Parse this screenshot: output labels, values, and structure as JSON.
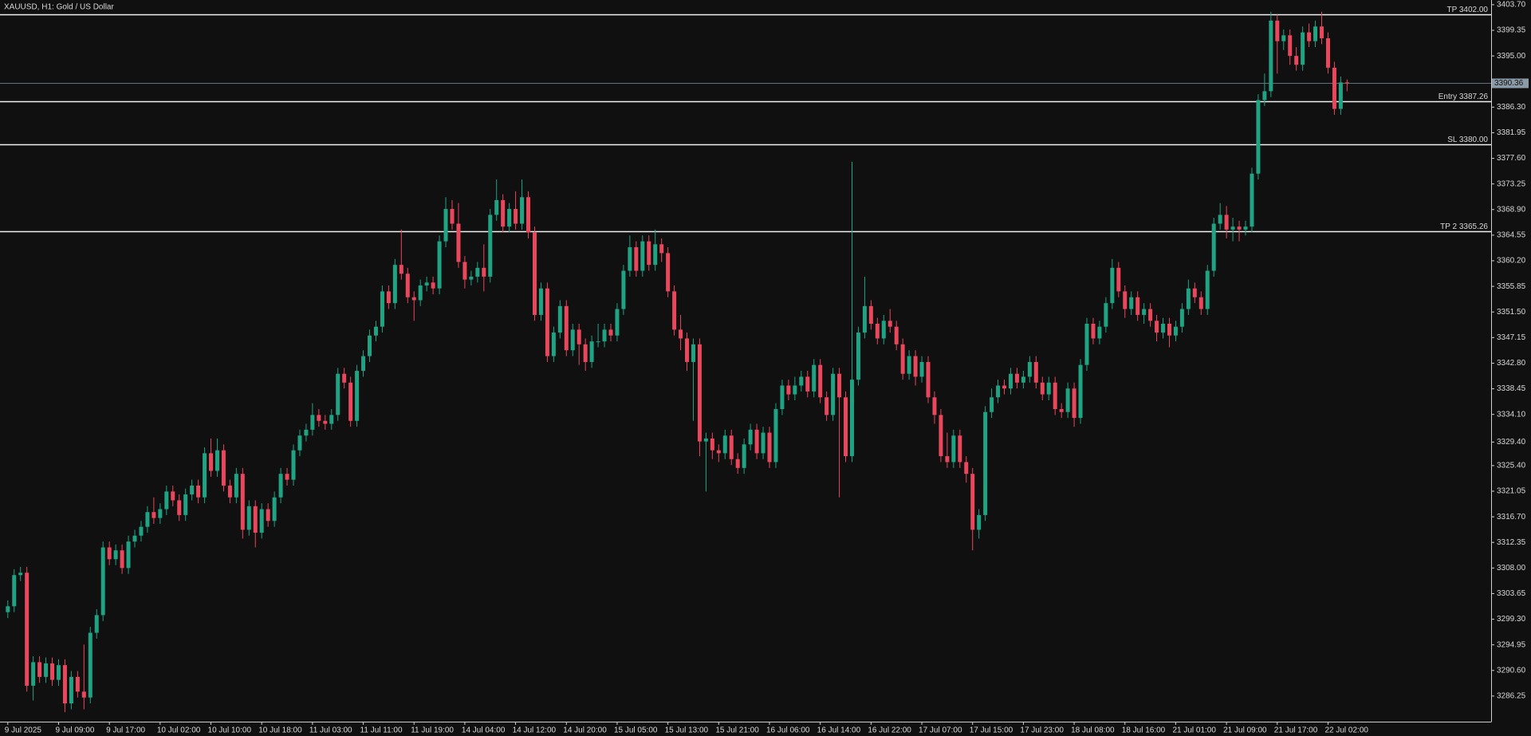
{
  "chart_data": {
    "type": "candlestick",
    "title": "XAUUSD, H1:  Gold / US Dollar",
    "up_color": "#1fa383",
    "down_color": "#e8475c",
    "level_color": "#f2f2f2",
    "bid_color": "#8a9aa6",
    "ylim": [
      3281.9,
      3404.5
    ],
    "yticks": [
      {
        "value": 3403.7,
        "label": "3403.70"
      },
      3399.35,
      {
        "value": 3395,
        "label": "3395.00"
      },
      {
        "value": 3386.3,
        "label": "3386.30"
      },
      3381.95,
      {
        "value": 3377.6,
        "label": "3377.60"
      },
      3373.25,
      {
        "value": 3368.9,
        "label": "3368.90"
      },
      3364.55,
      {
        "value": 3360.2,
        "label": "3360.20"
      },
      3355.85,
      {
        "value": 3351.5,
        "label": "3351.50"
      },
      3347.15,
      {
        "value": 3342.8,
        "label": "3342.80"
      },
      3338.45,
      {
        "value": 3334.1,
        "label": "3334.10"
      },
      {
        "value": 3329.4,
        "label": "3329.40"
      },
      {
        "value": 3325.4,
        "label": "3325.40"
      },
      3321.05,
      {
        "value": 3316.7,
        "label": "3316.70"
      },
      3312.35,
      {
        "value": 3308,
        "label": "3308.00"
      },
      3303.65,
      {
        "value": 3299.3,
        "label": "3299.30"
      },
      3294.95,
      {
        "value": 3290.6,
        "label": "3290.60"
      },
      3286.25
    ],
    "levels": [
      {
        "label": "TP 3402.00",
        "value": 3402
      },
      {
        "label": "Entry 3387.26",
        "value": 3387.26
      },
      {
        "label": "SL 3380.00",
        "value": 3380
      },
      {
        "label": "TP 2 3365.26",
        "value": 3365.26
      }
    ],
    "bid": 3390.36,
    "categories": [
      "9 Jul 2025",
      null,
      null,
      null,
      null,
      null,
      null,
      null,
      "9 Jul 09:00",
      null,
      null,
      null,
      null,
      null,
      null,
      null,
      "9 Jul 17:00",
      null,
      null,
      null,
      null,
      null,
      null,
      null,
      "10 Jul 02:00",
      null,
      null,
      null,
      null,
      null,
      null,
      null,
      "10 Jul 10:00",
      null,
      null,
      null,
      null,
      null,
      null,
      null,
      "10 Jul 18:00",
      null,
      null,
      null,
      null,
      null,
      null,
      null,
      "11 Jul 03:00",
      null,
      null,
      null,
      null,
      null,
      null,
      null,
      "11 Jul 11:00",
      null,
      null,
      null,
      null,
      null,
      null,
      null,
      "11 Jul 19:00",
      null,
      null,
      null,
      null,
      null,
      null,
      null,
      "14 Jul 04:00",
      null,
      null,
      null,
      null,
      null,
      null,
      null,
      "14 Jul 12:00",
      null,
      null,
      null,
      null,
      null,
      null,
      null,
      "14 Jul 20:00",
      null,
      null,
      null,
      null,
      null,
      null,
      null,
      "15 Jul 05:00",
      null,
      null,
      null,
      null,
      null,
      null,
      null,
      "15 Jul 13:00",
      null,
      null,
      null,
      null,
      null,
      null,
      null,
      "15 Jul 21:00",
      null,
      null,
      null,
      null,
      null,
      null,
      null,
      "16 Jul 06:00",
      null,
      null,
      null,
      null,
      null,
      null,
      null,
      "16 Jul 14:00",
      null,
      null,
      null,
      null,
      null,
      null,
      null,
      "16 Jul 22:00",
      null,
      null,
      null,
      null,
      null,
      null,
      null,
      "17 Jul 07:00",
      null,
      null,
      null,
      null,
      null,
      null,
      null,
      "17 Jul 15:00",
      null,
      null,
      null,
      null,
      null,
      null,
      null,
      "17 Jul 23:00",
      null,
      null,
      null,
      null,
      null,
      null,
      null,
      "18 Jul 08:00",
      null,
      null,
      null,
      null,
      null,
      null,
      null,
      "18 Jul 16:00",
      null,
      null,
      null,
      null,
      null,
      null,
      null,
      "21 Jul 01:00",
      null,
      null,
      null,
      null,
      null,
      null,
      null,
      "21 Jul 09:00",
      null,
      null,
      null,
      null,
      null,
      null,
      null,
      "21 Jul 17:00",
      null,
      null,
      null,
      null,
      null,
      null,
      null,
      "22 Jul 02:00",
      null,
      null,
      null
    ],
    "open": [
      3300.5,
      3301.5,
      3306.8,
      3307.2,
      3288.0,
      3292.0,
      3289.5,
      3291.8,
      3289.0,
      3291.5,
      3285.0,
      3289.5,
      3287.0,
      3286.0,
      3297.0,
      3300.0,
      3311.5,
      3309.5,
      3311.0,
      3308.0,
      3312.5,
      3313.5,
      3315.0,
      3317.5,
      3316.5,
      3318.0,
      3321.0,
      3319.5,
      3317.0,
      3320.5,
      3322.0,
      3320.0,
      3327.5,
      3324.5,
      3328.0,
      3322.0,
      3320.0,
      3324.0,
      3314.5,
      3318.5,
      3314.0,
      3318.0,
      3316.0,
      3320.0,
      3324.0,
      3323.0,
      3328.0,
      3330.5,
      3331.5,
      3334.0,
      3333.0,
      3332.5,
      3334.0,
      3341.0,
      3339.5,
      3333.0,
      3341.5,
      3344.0,
      3347.5,
      3349.0,
      3355.0,
      3353.0,
      3359.5,
      3358.0,
      3354.0,
      3353.5,
      3356.0,
      3356.5,
      3355.5,
      3363.5,
      3369.0,
      3366.5,
      3360.0,
      3357.0,
      3357.5,
      3359.0,
      3357.5,
      3368.0,
      3370.5,
      3366.0,
      3369.0,
      3366.5,
      3371.0,
      3365.0,
      3351.0,
      3355.5,
      3344.0,
      3348.0,
      3352.5,
      3345.0,
      3348.5,
      3346.0,
      3343.0,
      3346.5,
      3346.5,
      3348.5,
      3347.5,
      3352.0,
      3358.5,
      3362.5,
      3358.5,
      3363.5,
      3359.5,
      3363.0,
      3361.5,
      3355.0,
      3348.5,
      3347.0,
      3343.0,
      3346.0,
      3329.5,
      3330.0,
      3328.0,
      3327.5,
      3330.5,
      3326.5,
      3325.0,
      3329.0,
      3331.5,
      3327.5,
      3331.0,
      3326.0,
      3335.0,
      3339.0,
      3337.5,
      3339.0,
      3340.5,
      3338.0,
      3342.5,
      3337.0,
      3334.0,
      3341.0,
      3337.0,
      3327.0,
      3340.0,
      3348.0,
      3352.5,
      3349.5,
      3347.0,
      3350.0,
      3349.0,
      3346.0,
      3341.0,
      3344.0,
      3340.5,
      3343.0,
      3337.0,
      3334.0,
      3327.0,
      3326.0,
      3330.5,
      3326.0,
      3324.0,
      3314.5,
      3317.0,
      3334.5,
      3337.0,
      3339.0,
      3338.5,
      3341.0,
      3339.5,
      3340.5,
      3343.0,
      3339.5,
      3337.5,
      3339.5,
      3335.0,
      3334.5,
      3338.5,
      3333.5,
      3342.5,
      3349.5,
      3347.0,
      3349.0,
      3353.0,
      3359.0,
      3355.0,
      3352.0,
      3354.0,
      3351.0,
      3352.0,
      3350.0,
      3348.0,
      3349.5,
      3347.5,
      3349.0,
      3352.0,
      3355.5,
      3354.0,
      3352.0,
      3358.5,
      3366.5,
      3368.0,
      3365.5,
      3366.0,
      3365.5,
      3366.0,
      3375.0,
      3387.5,
      3389.0,
      3401.0,
      3397.5,
      3398.5,
      3395.0,
      3393.5,
      3399.0,
      3397.5,
      3400.0,
      3398.0,
      3393.0,
      3386.0,
      3390.5
    ],
    "high": [
      3302.5,
      3307.8,
      3308.2,
      3308.2,
      3293.0,
      3293.0,
      3292.8,
      3292.8,
      3292.5,
      3292.5,
      3290.5,
      3290.5,
      3295.0,
      3298.0,
      3301.0,
      3312.5,
      3312.5,
      3312.0,
      3312.0,
      3313.5,
      3314.5,
      3316.0,
      3318.5,
      3320.0,
      3319.0,
      3322.0,
      3322.0,
      3320.5,
      3321.5,
      3323.0,
      3323.0,
      3328.5,
      3330.0,
      3330.0,
      3329.0,
      3323.0,
      3325.0,
      3325.0,
      3319.5,
      3319.5,
      3319.0,
      3319.0,
      3321.0,
      3325.0,
      3325.0,
      3329.0,
      3331.5,
      3332.5,
      3336.0,
      3335.0,
      3334.0,
      3335.0,
      3342.0,
      3342.0,
      3340.5,
      3342.5,
      3345.0,
      3348.5,
      3350.0,
      3356.0,
      3356.0,
      3360.5,
      3365.5,
      3359.0,
      3355.0,
      3357.0,
      3357.5,
      3357.5,
      3364.5,
      3371.0,
      3370.5,
      3370.0,
      3361.0,
      3358.5,
      3360.0,
      3363.0,
      3369.0,
      3374.0,
      3371.5,
      3370.0,
      3372.0,
      3374.0,
      3372.0,
      3366.0,
      3356.5,
      3356.5,
      3349.0,
      3353.5,
      3353.5,
      3349.5,
      3349.5,
      3347.0,
      3347.5,
      3349.5,
      3349.5,
      3349.5,
      3353.0,
      3359.5,
      3364.5,
      3363.5,
      3364.5,
      3364.5,
      3365.5,
      3364.0,
      3362.5,
      3356.0,
      3351.0,
      3348.0,
      3347.0,
      3347.0,
      3331.0,
      3331.0,
      3329.0,
      3331.5,
      3331.5,
      3327.5,
      3330.0,
      3332.5,
      3332.5,
      3332.0,
      3332.0,
      3336.0,
      3340.0,
      3340.0,
      3340.5,
      3341.5,
      3341.5,
      3343.5,
      3343.5,
      3338.0,
      3342.0,
      3342.0,
      3338.0,
      3377.0,
      3349.0,
      3357.5,
      3353.5,
      3350.5,
      3351.0,
      3352.0,
      3350.0,
      3347.0,
      3345.0,
      3345.0,
      3344.0,
      3344.0,
      3338.0,
      3335.0,
      3331.0,
      3331.5,
      3331.5,
      3327.0,
      3325.0,
      3318.0,
      3335.5,
      3338.5,
      3340.0,
      3340.0,
      3342.0,
      3342.0,
      3341.5,
      3344.0,
      3344.0,
      3340.5,
      3340.5,
      3340.5,
      3336.0,
      3339.5,
      3339.5,
      3343.5,
      3350.5,
      3350.5,
      3350.0,
      3354.0,
      3360.5,
      3360.0,
      3356.0,
      3355.0,
      3355.0,
      3353.0,
      3353.0,
      3351.0,
      3350.5,
      3350.5,
      3350.0,
      3353.0,
      3357.0,
      3356.5,
      3355.0,
      3359.5,
      3367.5,
      3370.0,
      3369.5,
      3367.5,
      3367.0,
      3367.0,
      3376.0,
      3388.5,
      3392.0,
      3402.5,
      3402.0,
      3399.5,
      3399.5,
      3396.5,
      3400.0,
      3400.5,
      3401.0,
      3402.5,
      3399.0,
      3394.0,
      3391.5,
      3391.0
    ],
    "low": [
      3299.5,
      3300.5,
      3305.8,
      3287.0,
      3285.5,
      3288.5,
      3288.5,
      3288.0,
      3288.0,
      3283.5,
      3284.0,
      3286.0,
      3284.0,
      3285.0,
      3296.0,
      3299.0,
      3308.5,
      3308.5,
      3307.0,
      3307.0,
      3311.5,
      3312.5,
      3314.0,
      3315.5,
      3315.5,
      3317.0,
      3318.5,
      3316.0,
      3316.0,
      3319.5,
      3319.0,
      3319.0,
      3323.5,
      3323.5,
      3321.0,
      3319.0,
      3319.0,
      3313.0,
      3313.5,
      3311.5,
      3313.0,
      3315.0,
      3315.0,
      3319.0,
      3322.0,
      3322.0,
      3327.0,
      3329.5,
      3330.5,
      3332.0,
      3331.5,
      3331.5,
      3333.0,
      3338.5,
      3332.0,
      3332.0,
      3340.5,
      3343.0,
      3346.5,
      3348.0,
      3352.0,
      3352.0,
      3357.0,
      3353.0,
      3350.0,
      3352.5,
      3355.0,
      3354.5,
      3354.5,
      3362.5,
      3365.5,
      3359.0,
      3355.5,
      3356.0,
      3356.5,
      3355.0,
      3356.5,
      3367.0,
      3365.0,
      3365.0,
      3365.5,
      3365.5,
      3364.0,
      3350.0,
      3350.0,
      3343.0,
      3343.0,
      3347.0,
      3344.0,
      3344.0,
      3342.5,
      3341.5,
      3342.0,
      3345.5,
      3345.5,
      3346.5,
      3346.5,
      3351.0,
      3357.5,
      3357.5,
      3357.5,
      3358.5,
      3358.5,
      3360.0,
      3354.0,
      3347.5,
      3345.0,
      3341.5,
      3333.0,
      3327.0,
      3321.0,
      3326.5,
      3326.0,
      3326.5,
      3325.5,
      3324.0,
      3324.0,
      3328.0,
      3326.5,
      3326.5,
      3325.0,
      3325.0,
      3334.0,
      3336.5,
      3336.5,
      3338.0,
      3337.0,
      3337.0,
      3336.0,
      3333.0,
      3333.0,
      3320.0,
      3326.0,
      3326.0,
      3339.0,
      3347.0,
      3348.5,
      3346.0,
      3346.0,
      3348.0,
      3345.0,
      3340.0,
      3340.0,
      3339.0,
      3339.5,
      3336.0,
      3332.5,
      3326.0,
      3325.0,
      3325.0,
      3325.0,
      3322.5,
      3311.0,
      3313.0,
      3316.0,
      3333.5,
      3336.0,
      3337.5,
      3337.5,
      3338.5,
      3338.5,
      3339.5,
      3338.5,
      3336.5,
      3336.5,
      3334.0,
      3333.5,
      3333.5,
      3332.0,
      3332.5,
      3341.5,
      3346.0,
      3346.0,
      3348.0,
      3352.0,
      3354.0,
      3350.5,
      3351.0,
      3350.0,
      3349.5,
      3349.0,
      3346.5,
      3347.0,
      3345.5,
      3346.5,
      3348.0,
      3351.0,
      3353.0,
      3351.0,
      3351.0,
      3357.5,
      3365.5,
      3364.0,
      3363.5,
      3363.5,
      3364.5,
      3365.0,
      3374.0,
      3386.5,
      3388.0,
      3392.0,
      3396.0,
      3393.5,
      3392.5,
      3392.5,
      3396.5,
      3396.5,
      3397.0,
      3392.0,
      3385.0,
      3385.0,
      3389.0
    ],
    "close": [
      3301.5,
      3306.8,
      3307.2,
      3288.0,
      3292.0,
      3289.5,
      3291.8,
      3289.0,
      3291.5,
      3285.0,
      3289.5,
      3287.0,
      3286.0,
      3297.0,
      3300.0,
      3311.5,
      3309.5,
      3311.0,
      3308.0,
      3312.5,
      3313.5,
      3315.0,
      3317.5,
      3316.5,
      3318.0,
      3321.0,
      3319.5,
      3317.0,
      3320.5,
      3322.0,
      3320.0,
      3327.5,
      3324.5,
      3328.0,
      3322.0,
      3320.0,
      3324.0,
      3314.5,
      3318.5,
      3314.0,
      3318.0,
      3316.0,
      3320.0,
      3324.0,
      3323.0,
      3328.0,
      3330.5,
      3331.5,
      3334.0,
      3333.0,
      3332.5,
      3334.0,
      3341.0,
      3339.5,
      3333.0,
      3341.5,
      3344.0,
      3347.5,
      3349.0,
      3355.0,
      3353.0,
      3359.5,
      3358.0,
      3354.0,
      3353.5,
      3356.0,
      3356.5,
      3355.5,
      3363.5,
      3369.0,
      3366.5,
      3360.0,
      3357.0,
      3357.5,
      3359.0,
      3357.5,
      3368.0,
      3370.5,
      3366.0,
      3369.0,
      3366.5,
      3371.0,
      3365.0,
      3351.0,
      3355.5,
      3344.0,
      3348.0,
      3352.5,
      3345.0,
      3348.5,
      3346.0,
      3343.0,
      3346.5,
      3346.5,
      3348.5,
      3347.5,
      3352.0,
      3358.5,
      3362.5,
      3358.5,
      3363.5,
      3359.5,
      3363.0,
      3361.5,
      3355.0,
      3348.5,
      3347.0,
      3343.0,
      3346.0,
      3329.5,
      3330.0,
      3328.0,
      3327.5,
      3330.5,
      3326.5,
      3325.0,
      3329.0,
      3331.5,
      3327.5,
      3331.0,
      3326.0,
      3335.0,
      3339.0,
      3337.5,
      3339.0,
      3340.5,
      3338.0,
      3342.5,
      3337.0,
      3334.0,
      3341.0,
      3337.0,
      3327.0,
      3340.0,
      3348.0,
      3352.5,
      3349.5,
      3347.0,
      3350.0,
      3349.0,
      3346.0,
      3341.0,
      3344.0,
      3340.5,
      3343.0,
      3337.0,
      3334.0,
      3327.0,
      3326.0,
      3330.5,
      3326.0,
      3324.0,
      3314.5,
      3317.0,
      3334.5,
      3337.0,
      3339.0,
      3338.5,
      3341.0,
      3339.5,
      3340.5,
      3343.0,
      3339.5,
      3337.5,
      3339.5,
      3335.0,
      3334.5,
      3338.5,
      3333.5,
      3342.5,
      3349.5,
      3347.0,
      3349.0,
      3353.0,
      3359.0,
      3355.0,
      3352.0,
      3354.0,
      3351.0,
      3352.0,
      3350.0,
      3348.0,
      3349.5,
      3347.5,
      3349.0,
      3352.0,
      3355.5,
      3354.0,
      3352.0,
      3358.5,
      3366.5,
      3368.0,
      3365.5,
      3366.0,
      3365.5,
      3366.0,
      3375.0,
      3387.5,
      3389.0,
      3401.0,
      3397.5,
      3398.5,
      3395.0,
      3393.5,
      3399.0,
      3397.5,
      3400.0,
      3398.0,
      3393.0,
      3386.0,
      3390.5,
      3390.36
    ]
  }
}
